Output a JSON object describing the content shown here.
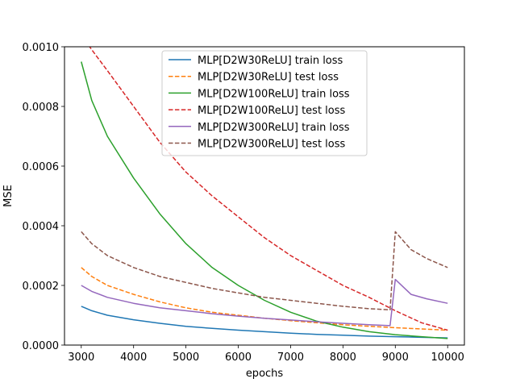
{
  "chart_data": {
    "type": "line",
    "xlabel": "epochs",
    "ylabel": "MSE",
    "xlim": [
      2680,
      10320
    ],
    "ylim": [
      0,
      0.001
    ],
    "xticks": [
      3000,
      4000,
      5000,
      6000,
      7000,
      8000,
      9000,
      10000
    ],
    "xtick_labels": [
      "3000",
      "4000",
      "5000",
      "6000",
      "7000",
      "8000",
      "9000",
      "10000"
    ],
    "yticks": [
      0,
      0.0002,
      0.0004,
      0.0006,
      0.0008,
      0.001
    ],
    "ytick_labels": [
      "0.0000",
      "0.0002",
      "0.0004",
      "0.0006",
      "0.0008",
      "0.0010"
    ],
    "grid": false,
    "legend_position": "upper-center",
    "series": [
      {
        "name": "MLP[D2W30ReLU] train loss",
        "color": "#1f77b4",
        "dash": "solid",
        "x": [
          3000,
          3200,
          3500,
          4000,
          4500,
          5000,
          5500,
          6000,
          6500,
          7000,
          7500,
          8000,
          8500,
          9000,
          9500,
          10000
        ],
        "y": [
          0.00013,
          0.000115,
          0.0001,
          8.5e-05,
          7.3e-05,
          6.3e-05,
          5.6e-05,
          5e-05,
          4.5e-05,
          4e-05,
          3.6e-05,
          3.3e-05,
          3e-05,
          2.8e-05,
          2.6e-05,
          2.4e-05
        ]
      },
      {
        "name": "MLP[D2W30ReLU] test loss",
        "color": "#ff7f0e",
        "dash": "dashed",
        "x": [
          3000,
          3200,
          3500,
          4000,
          4500,
          5000,
          5500,
          6000,
          6500,
          7000,
          7500,
          8000,
          8500,
          9000,
          9500,
          10000
        ],
        "y": [
          0.00026,
          0.00023,
          0.0002,
          0.00017,
          0.000145,
          0.000125,
          0.00011,
          0.0001,
          9e-05,
          8.2e-05,
          7.5e-05,
          6.8e-05,
          6.3e-05,
          5.8e-05,
          5.4e-05,
          5e-05
        ]
      },
      {
        "name": "MLP[D2W100ReLU] train loss",
        "color": "#2ca02c",
        "dash": "solid",
        "x": [
          3000,
          3200,
          3500,
          4000,
          4500,
          5000,
          5500,
          6000,
          6500,
          7000,
          7500,
          8000,
          8500,
          9000,
          9500,
          10000
        ],
        "y": [
          0.00095,
          0.00082,
          0.0007,
          0.00056,
          0.00044,
          0.00034,
          0.00026,
          0.0002,
          0.00015,
          0.00011,
          8e-05,
          6e-05,
          4.5e-05,
          3.5e-05,
          2.8e-05,
          2.2e-05
        ]
      },
      {
        "name": "MLP[D2W100ReLU] test loss",
        "color": "#d62728",
        "dash": "dashed",
        "x": [
          3000,
          3200,
          3500,
          4000,
          4500,
          5000,
          5500,
          6000,
          6500,
          7000,
          7500,
          8000,
          8500,
          9000,
          9500,
          10000
        ],
        "y": [
          0.00104,
          0.00099,
          0.00092,
          0.0008,
          0.00068,
          0.00058,
          0.0005,
          0.00043,
          0.00036,
          0.0003,
          0.00025,
          0.0002,
          0.00016,
          0.000115,
          7.5e-05,
          5e-05
        ]
      },
      {
        "name": "MLP[D2W300ReLU] train loss",
        "color": "#9467bd",
        "dash": "solid",
        "x": [
          3000,
          3200,
          3500,
          4000,
          4500,
          5000,
          5500,
          6000,
          6500,
          7000,
          7500,
          8000,
          8500,
          8900,
          9000,
          9300,
          9600,
          10000
        ],
        "y": [
          0.0002,
          0.00018,
          0.00016,
          0.00014,
          0.000125,
          0.000115,
          0.000105,
          9.7e-05,
          9e-05,
          8.4e-05,
          7.8e-05,
          7.3e-05,
          6.8e-05,
          6.5e-05,
          0.00022,
          0.00017,
          0.000155,
          0.00014
        ]
      },
      {
        "name": "MLP[D2W300ReLU] test loss",
        "color": "#8c564b",
        "dash": "dashed",
        "x": [
          3000,
          3200,
          3500,
          4000,
          4500,
          5000,
          5500,
          6000,
          6500,
          7000,
          7500,
          8000,
          8500,
          8900,
          9000,
          9300,
          9600,
          10000
        ],
        "y": [
          0.00038,
          0.00034,
          0.0003,
          0.00026,
          0.00023,
          0.00021,
          0.00019,
          0.000175,
          0.00016,
          0.00015,
          0.00014,
          0.00013,
          0.000122,
          0.000118,
          0.00038,
          0.00032,
          0.00029,
          0.00026
        ]
      }
    ]
  }
}
